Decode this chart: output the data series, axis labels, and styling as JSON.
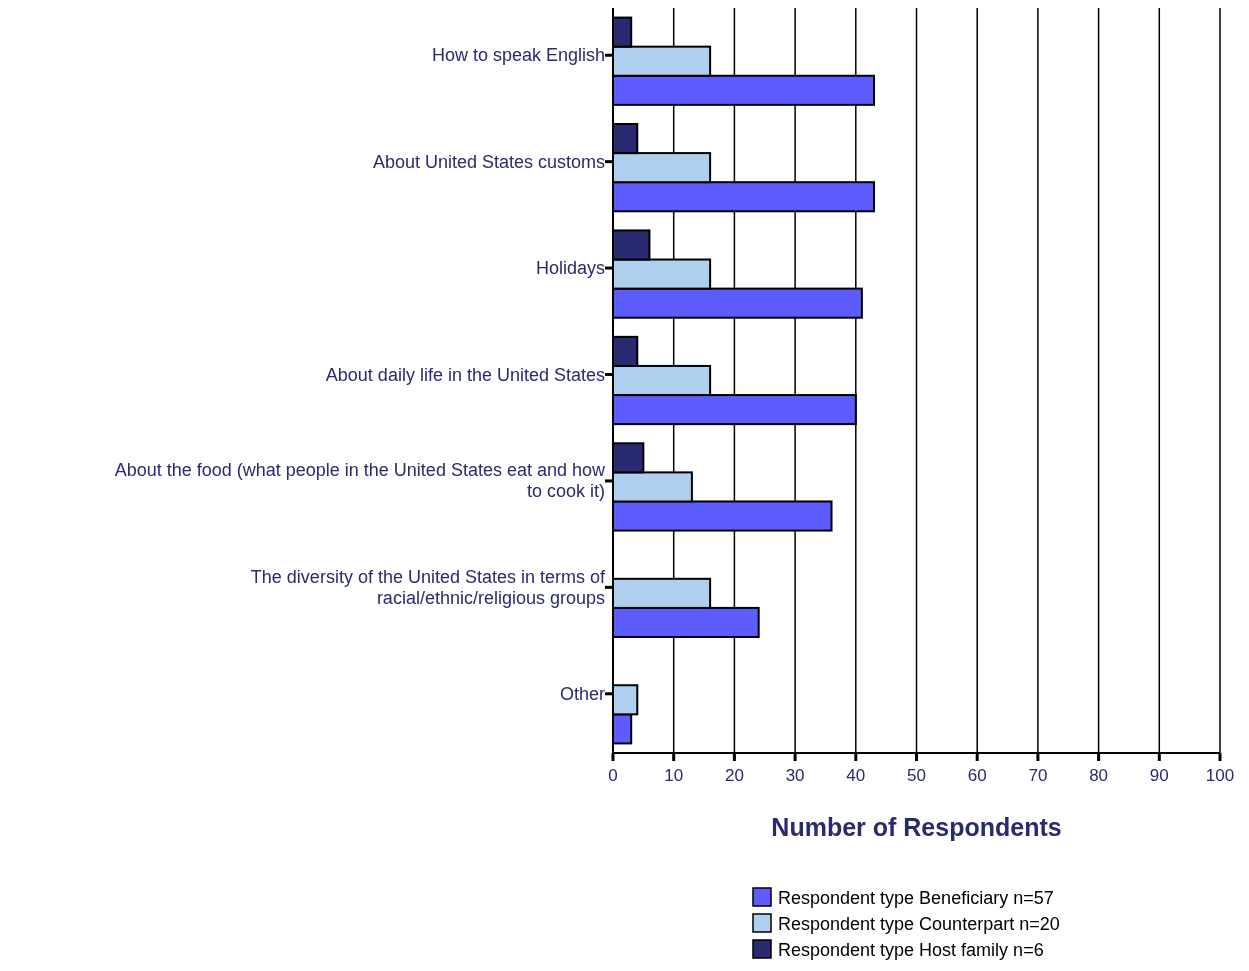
{
  "chart_data": {
    "type": "bar",
    "orientation": "horizontal",
    "xlabel": "Number of Respondents",
    "categories": [
      "How  to speak English",
      "About United States customs",
      "Holidays",
      "About daily life in the United States",
      "About the food (what people in the United States eat and how to cook it)",
      "The diversity of the United States in terms of racial/ethnic/religious groups",
      "Other"
    ],
    "series": [
      {
        "name": "Respondent type Beneficiary n=57",
        "color": "#5c5cff",
        "values": [
          43,
          43,
          41,
          40,
          36,
          24,
          3
        ]
      },
      {
        "name": "Respondent type Counterpart n=20",
        "color": "#aed0ee",
        "values": [
          16,
          16,
          16,
          16,
          13,
          16,
          4
        ]
      },
      {
        "name": "Respondent type Host family n=6",
        "color": "#2a2a72",
        "values": [
          3,
          4,
          6,
          4,
          5,
          null,
          null
        ]
      }
    ],
    "xlim": [
      0,
      100
    ],
    "xticks": [
      0,
      10,
      20,
      30,
      40,
      50,
      60,
      70,
      80,
      90,
      100
    ],
    "grid": "x",
    "legend": "bottom right"
  }
}
